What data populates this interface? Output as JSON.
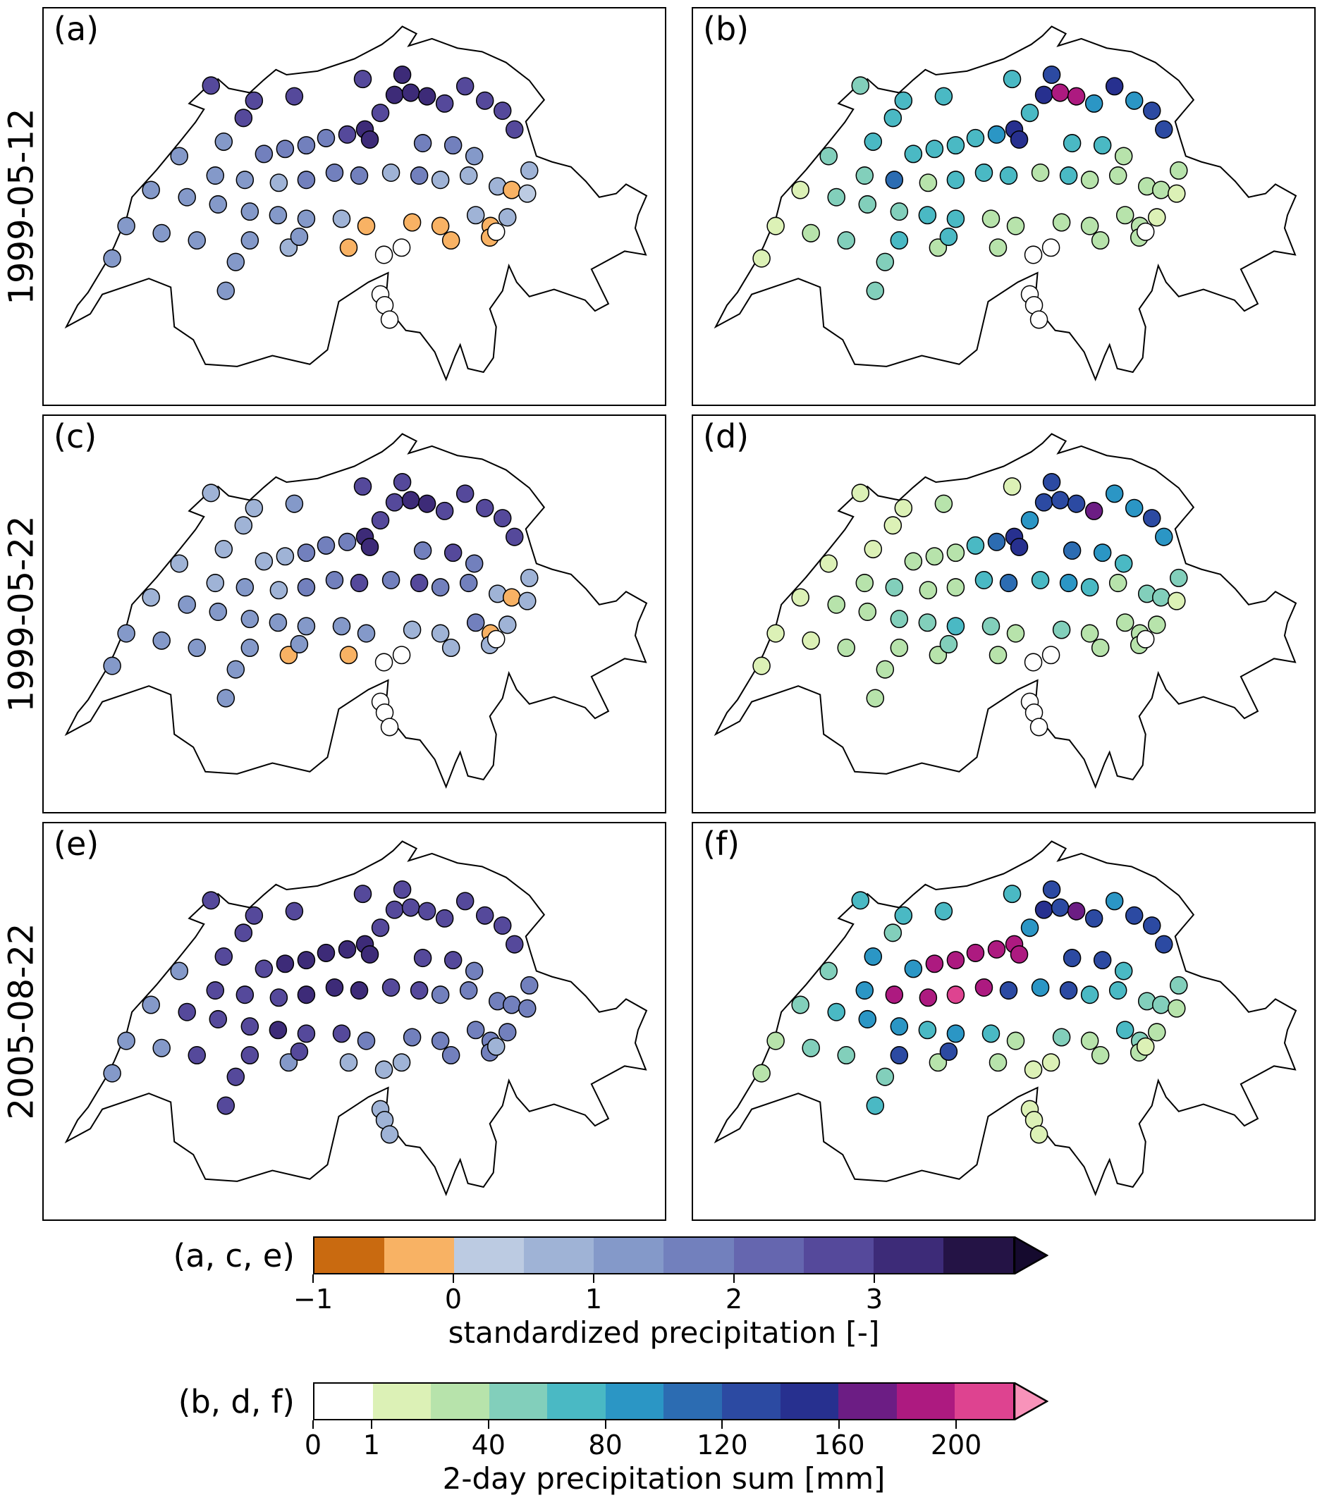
{
  "figure": {
    "rows": [
      {
        "date": "1999-05-12"
      },
      {
        "date": "1999-05-22"
      },
      {
        "date": "2005-08-22"
      }
    ]
  },
  "chart_data": {
    "type": "scatter",
    "title": "",
    "description": "Six maps of Switzerland with station dots: left column (a,c,e) standardized precipitation, right column (b,d,f) 2-day precipitation sum, for three dates.",
    "map_outline": {
      "region": "Switzerland",
      "points": [
        [
          329,
          85
        ],
        [
          344,
          92
        ],
        [
          388,
          87
        ],
        [
          440,
          70
        ],
        [
          479,
          50
        ],
        [
          495,
          38
        ],
        [
          508,
          25
        ],
        [
          528,
          35
        ],
        [
          517,
          52
        ],
        [
          550,
          42
        ],
        [
          586,
          55
        ],
        [
          621,
          60
        ],
        [
          655,
          75
        ],
        [
          688,
          100
        ],
        [
          709,
          127
        ],
        [
          695,
          143
        ],
        [
          683,
          157
        ],
        [
          690,
          180
        ],
        [
          698,
          205
        ],
        [
          720,
          213
        ],
        [
          747,
          220
        ],
        [
          768,
          240
        ],
        [
          787,
          262
        ],
        [
          811,
          257
        ],
        [
          825,
          244
        ],
        [
          854,
          260
        ],
        [
          842,
          287
        ],
        [
          838,
          305
        ],
        [
          853,
          342
        ],
        [
          823,
          337
        ],
        [
          776,
          362
        ],
        [
          800,
          410
        ],
        [
          781,
          420
        ],
        [
          767,
          405
        ],
        [
          723,
          390
        ],
        [
          688,
          400
        ],
        [
          670,
          380
        ],
        [
          659,
          357
        ],
        [
          650,
          392
        ],
        [
          632,
          417
        ],
        [
          641,
          442
        ],
        [
          637,
          485
        ],
        [
          623,
          505
        ],
        [
          601,
          500
        ],
        [
          590,
          467
        ],
        [
          583,
          482
        ],
        [
          570,
          515
        ],
        [
          554,
          477
        ],
        [
          533,
          450
        ],
        [
          513,
          447
        ],
        [
          484,
          412
        ],
        [
          488,
          367
        ],
        [
          460,
          380
        ],
        [
          418,
          407
        ],
        [
          402,
          474
        ],
        [
          377,
          494
        ],
        [
          324,
          482
        ],
        [
          274,
          497
        ],
        [
          229,
          494
        ],
        [
          212,
          460
        ],
        [
          185,
          442
        ],
        [
          180,
          387
        ],
        [
          149,
          375
        ],
        [
          83,
          397
        ],
        [
          66,
          424
        ],
        [
          32,
          442
        ],
        [
          48,
          412
        ],
        [
          63,
          394
        ],
        [
          90,
          350
        ],
        [
          100,
          330
        ],
        [
          118,
          289
        ],
        [
          125,
          262
        ],
        [
          160,
          224
        ],
        [
          192,
          186
        ],
        [
          215,
          158
        ],
        [
          227,
          140
        ],
        [
          206,
          132
        ],
        [
          232,
          108
        ],
        [
          247,
          98
        ],
        [
          262,
          111
        ],
        [
          292,
          117
        ],
        [
          312,
          99
        ]
      ]
    },
    "stations": [
      [
        237,
        107
      ],
      [
        298,
        128
      ],
      [
        283,
        152
      ],
      [
        355,
        122
      ],
      [
        452,
        98
      ],
      [
        497,
        120
      ],
      [
        520,
        117
      ],
      [
        543,
        122
      ],
      [
        568,
        132
      ],
      [
        597,
        108
      ],
      [
        625,
        128
      ],
      [
        455,
        168
      ],
      [
        462,
        182
      ],
      [
        430,
        175
      ],
      [
        400,
        180
      ],
      [
        372,
        190
      ],
      [
        342,
        195
      ],
      [
        312,
        202
      ],
      [
        255,
        185
      ],
      [
        192,
        205
      ],
      [
        650,
        142
      ],
      [
        667,
        168
      ],
      [
        580,
        190
      ],
      [
        610,
        205
      ],
      [
        243,
        232
      ],
      [
        285,
        238
      ],
      [
        333,
        242
      ],
      [
        372,
        238
      ],
      [
        412,
        228
      ],
      [
        447,
        232
      ],
      [
        492,
        228
      ],
      [
        532,
        232
      ],
      [
        562,
        238
      ],
      [
        602,
        232
      ],
      [
        643,
        247
      ],
      [
        663,
        252
      ],
      [
        685,
        257
      ],
      [
        152,
        252
      ],
      [
        203,
        262
      ],
      [
        247,
        272
      ],
      [
        292,
        282
      ],
      [
        332,
        287
      ],
      [
        372,
        292
      ],
      [
        422,
        292
      ],
      [
        457,
        302
      ],
      [
        522,
        297
      ],
      [
        562,
        302
      ],
      [
        612,
        287
      ],
      [
        633,
        302
      ],
      [
        117,
        302
      ],
      [
        167,
        312
      ],
      [
        217,
        322
      ],
      [
        292,
        322
      ],
      [
        347,
        332
      ],
      [
        362,
        317
      ],
      [
        432,
        332
      ],
      [
        482,
        342
      ],
      [
        507,
        332
      ],
      [
        577,
        322
      ],
      [
        632,
        318
      ],
      [
        641,
        310
      ],
      [
        272,
        352
      ],
      [
        258,
        392
      ],
      [
        477,
        397
      ],
      [
        483,
        412
      ],
      [
        490,
        432
      ],
      [
        97,
        347
      ],
      [
        537,
        187
      ],
      [
        477,
        145
      ],
      [
        508,
        92
      ],
      [
        688,
        225
      ],
      [
        657,
        290
      ]
    ],
    "panels": [
      {
        "label": "(a)",
        "date": "1999-05-12",
        "colorbar": 0,
        "values": [
          2.7,
          2.7,
          2.7,
          2.7,
          2.7,
          3.2,
          3.2,
          3.2,
          2.7,
          2.7,
          2.7,
          3.2,
          3.2,
          2.7,
          1.8,
          1.8,
          1.8,
          1.8,
          1.2,
          1.2,
          2.7,
          2.7,
          1.8,
          1.2,
          1.2,
          1.2,
          0.7,
          1.8,
          1.8,
          1.8,
          0.7,
          1.8,
          0.7,
          0.7,
          0.7,
          -0.3,
          0.3,
          1.2,
          1.2,
          1.2,
          1.2,
          1.2,
          1.2,
          0.7,
          -0.3,
          -0.3,
          -0.3,
          0.7,
          -0.3,
          1.2,
          1.2,
          1.2,
          1.2,
          0.7,
          1.2,
          -0.3,
          null,
          null,
          -0.3,
          -0.3,
          null,
          1.2,
          1.2,
          null,
          null,
          null,
          1.2,
          1.8,
          2.7,
          3.2,
          0.7,
          0.7
        ]
      },
      {
        "label": "(b)",
        "date": "1999-05-12",
        "colorbar": 1,
        "values": [
          50,
          70,
          70,
          70,
          70,
          150,
          190,
          190,
          90,
          150,
          90,
          150,
          150,
          90,
          70,
          70,
          70,
          70,
          70,
          50,
          130,
          130,
          70,
          30,
          50,
          110,
          30,
          70,
          70,
          70,
          30,
          70,
          30,
          30,
          30,
          30,
          10,
          10,
          50,
          50,
          50,
          70,
          70,
          30,
          30,
          30,
          30,
          30,
          30,
          10,
          30,
          50,
          70,
          30,
          70,
          30,
          0.5,
          0.5,
          30,
          30,
          0.5,
          50,
          50,
          0.5,
          0.5,
          0.5,
          10,
          70,
          70,
          130,
          30,
          10
        ]
      },
      {
        "label": "(c)",
        "date": "1999-05-22",
        "colorbar": 0,
        "values": [
          0.7,
          0.7,
          0.7,
          1.2,
          2.7,
          2.7,
          3.2,
          3.2,
          2.7,
          2.7,
          2.7,
          3.2,
          3.2,
          1.8,
          1.8,
          1.8,
          0.7,
          0.7,
          0.7,
          0.7,
          2.7,
          2.7,
          2.7,
          1.8,
          0.7,
          1.2,
          0.7,
          1.8,
          1.8,
          2.7,
          1.8,
          2.7,
          1.8,
          1.8,
          0.7,
          -0.3,
          0.7,
          0.7,
          1.2,
          1.2,
          1.2,
          1.2,
          1.2,
          1.2,
          1.2,
          0.7,
          0.7,
          1.8,
          -0.3,
          1.2,
          1.2,
          1.2,
          1.2,
          -0.3,
          1.2,
          -0.3,
          null,
          null,
          0.7,
          0.7,
          null,
          1.2,
          1.2,
          null,
          null,
          null,
          1.2,
          1.8,
          2.7,
          2.7,
          0.7,
          0.7
        ]
      },
      {
        "label": "(d)",
        "date": "1999-05-22",
        "colorbar": 1,
        "values": [
          10,
          10,
          10,
          30,
          10,
          130,
          130,
          130,
          170,
          90,
          90,
          150,
          150,
          110,
          70,
          30,
          30,
          30,
          10,
          10,
          130,
          90,
          90,
          70,
          30,
          50,
          30,
          30,
          70,
          110,
          70,
          90,
          70,
          30,
          50,
          50,
          10,
          10,
          30,
          30,
          50,
          50,
          70,
          50,
          30,
          50,
          30,
          30,
          30,
          10,
          10,
          30,
          30,
          30,
          50,
          30,
          0.5,
          0.5,
          30,
          30,
          0.5,
          30,
          30,
          0.5,
          0.5,
          0.5,
          10,
          110,
          90,
          130,
          50,
          30
        ]
      },
      {
        "label": "(e)",
        "date": "2005-08-22",
        "colorbar": 0,
        "values": [
          2.7,
          2.7,
          2.7,
          2.7,
          2.7,
          2.7,
          2.7,
          2.7,
          2.7,
          2.7,
          2.7,
          3.2,
          3.2,
          3.2,
          3.2,
          3.2,
          3.2,
          2.7,
          2.7,
          1.2,
          2.7,
          2.7,
          2.7,
          1.8,
          2.7,
          2.7,
          2.7,
          3.2,
          3.2,
          3.2,
          2.7,
          2.7,
          1.8,
          1.8,
          1.8,
          1.8,
          1.8,
          1.2,
          2.7,
          2.7,
          2.7,
          3.2,
          2.7,
          2.7,
          1.8,
          1.8,
          1.8,
          1.8,
          1.8,
          1.2,
          1.2,
          2.7,
          2.7,
          1.2,
          2.7,
          0.7,
          0.7,
          0.7,
          1.8,
          1.8,
          0.7,
          2.7,
          2.7,
          0.7,
          0.7,
          0.7,
          1.2,
          2.7,
          2.7,
          2.7,
          1.8,
          1.8
        ]
      },
      {
        "label": "(f)",
        "date": "2005-08-22",
        "colorbar": 1,
        "values": [
          70,
          70,
          50,
          70,
          70,
          150,
          130,
          170,
          130,
          90,
          130,
          190,
          190,
          190,
          190,
          190,
          190,
          90,
          90,
          50,
          130,
          130,
          130,
          70,
          90,
          190,
          190,
          210,
          190,
          130,
          90,
          130,
          70,
          70,
          50,
          50,
          30,
          50,
          70,
          90,
          90,
          70,
          90,
          70,
          30,
          50,
          30,
          70,
          50,
          30,
          50,
          50,
          130,
          30,
          130,
          30,
          10,
          10,
          30,
          30,
          10,
          50,
          70,
          10,
          10,
          10,
          30,
          130,
          90,
          130,
          50,
          30
        ]
      }
    ],
    "colorbars": [
      {
        "group_label": "(a, c, e)",
        "title": "standardized precipitation [-]",
        "bounds": [
          -1,
          -0.5,
          0,
          0.5,
          1,
          1.5,
          2,
          2.5,
          3,
          3.5,
          4
        ],
        "segments": [
          "#c96a10",
          "#f8b264",
          "#bccbe2",
          "#9fb3d6",
          "#8499c9",
          "#7280bd",
          "#6566af",
          "#55499b",
          "#3d2b78",
          "#241345"
        ],
        "arrow_color": "#150a2e",
        "tick_values": [
          -1,
          0,
          1,
          2,
          3
        ],
        "tick_labels": [
          "−1",
          "0",
          "1",
          "2",
          "3"
        ]
      },
      {
        "group_label": "(b, d, f)",
        "title": "2-day precipitation sum [mm]",
        "bounds": [
          0,
          1,
          20,
          40,
          60,
          80,
          100,
          120,
          140,
          160,
          180,
          200,
          220
        ],
        "segments": [
          "#ffffff",
          "#dcf1b6",
          "#b7e3ab",
          "#82cfbb",
          "#4ab9c4",
          "#2b96c5",
          "#2c6cb2",
          "#2c4aa2",
          "#27308f",
          "#6c1d84",
          "#ad1a80",
          "#de4390"
        ],
        "arrow_color": "#f893ba",
        "tick_values": [
          0,
          1,
          40,
          80,
          120,
          160,
          200
        ],
        "tick_labels": [
          "0",
          "1",
          "40",
          "80",
          "120",
          "160",
          "200"
        ]
      }
    ]
  }
}
